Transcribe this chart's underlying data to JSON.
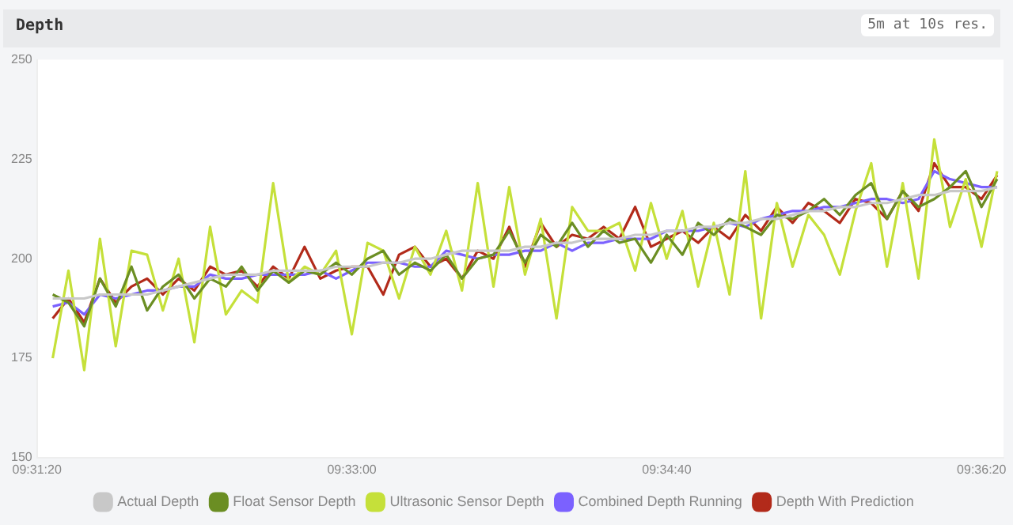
{
  "chart_data": {
    "type": "line",
    "title": "Depth",
    "subtitle": "5m at 10s res.",
    "x": [
      9.52361,
      9.525,
      9.52639,
      9.52778,
      9.52917,
      9.53056,
      9.53194,
      9.53333,
      9.53472,
      9.53611,
      9.5375,
      9.53889,
      9.54028,
      9.54167,
      9.54306,
      9.54444,
      9.54583,
      9.54722,
      9.54861,
      9.55,
      9.55139,
      9.55278,
      9.55417,
      9.55556,
      9.55694,
      9.55833,
      9.55972,
      9.56111,
      9.5625,
      9.56389,
      9.56528,
      9.56667,
      9.56806,
      9.56944,
      9.57083,
      9.57222,
      9.57361,
      9.575,
      9.57639,
      9.57778,
      9.57917,
      9.58056,
      9.58194,
      9.58333,
      9.58472,
      9.58611,
      9.5875,
      9.58889,
      9.59028,
      9.59167,
      9.59306,
      9.59444,
      9.59583,
      9.59722,
      9.59861,
      9.6,
      9.60139,
      9.60278,
      9.60417,
      9.60556,
      9.60694
    ],
    "series": [
      {
        "name": "Actual Depth",
        "color": "#c8c8c8",
        "values": [
          190,
          190,
          190,
          191,
          191,
          191,
          191,
          192,
          193,
          194,
          195,
          196,
          196,
          196,
          197,
          197,
          197,
          197,
          198,
          198,
          198,
          199,
          199,
          200,
          200,
          201,
          202,
          202,
          202,
          202,
          203,
          203,
          204,
          204,
          205,
          205,
          205,
          206,
          206,
          207,
          207,
          208,
          208,
          209,
          209,
          210,
          210,
          211,
          212,
          212,
          213,
          213,
          214,
          214,
          215,
          216,
          216,
          217,
          217,
          217,
          218
        ]
      },
      {
        "name": "Float Sensor Depth",
        "color": "#6b8e23",
        "values": [
          191,
          189,
          183,
          195,
          188,
          198,
          187,
          193,
          196,
          190,
          195,
          193,
          198,
          192,
          197,
          194,
          197,
          196,
          199,
          196,
          200,
          202,
          196,
          199,
          197,
          201,
          195,
          200,
          201,
          207,
          199,
          206,
          203,
          209,
          203,
          207,
          204,
          205,
          199,
          206,
          201,
          209,
          206,
          210,
          208,
          206,
          211,
          210,
          212,
          215,
          211,
          216,
          219,
          210,
          217,
          213,
          215,
          218,
          222,
          213,
          220
        ]
      },
      {
        "name": "Ultrasonic Sensor Depth",
        "color": "#c5e03a",
        "values": [
          175,
          197,
          172,
          205,
          178,
          202,
          201,
          187,
          200,
          179,
          208,
          186,
          192,
          189,
          219,
          194,
          198,
          196,
          202,
          181,
          204,
          202,
          190,
          203,
          196,
          207,
          192,
          219,
          193,
          218,
          196,
          210,
          185,
          213,
          207,
          207,
          209,
          197,
          214,
          200,
          212,
          193,
          209,
          191,
          222,
          185,
          214,
          198,
          211,
          206,
          196,
          212,
          224,
          198,
          219,
          195,
          230,
          208,
          220,
          203,
          222
        ]
      },
      {
        "name": "Combined Depth Running",
        "color": "#7b61ff",
        "values": [
          188,
          189,
          186,
          191,
          190,
          191,
          192,
          192,
          193,
          193,
          196,
          195,
          195,
          196,
          196,
          196,
          196,
          197,
          195,
          197,
          199,
          199,
          199,
          198,
          198,
          202,
          201,
          200,
          201,
          201,
          202,
          202,
          204,
          202,
          204,
          204,
          205,
          205,
          205,
          207,
          207,
          207,
          208,
          209,
          208,
          210,
          211,
          212,
          212,
          213,
          213,
          214,
          215,
          215,
          214,
          215,
          222,
          220,
          219,
          218,
          218
        ]
      },
      {
        "name": "Depth With Prediction",
        "color": "#b22a1a",
        "values": [
          185,
          190,
          184,
          195,
          189,
          193,
          195,
          191,
          195,
          192,
          198,
          196,
          197,
          193,
          198,
          195,
          203,
          195,
          197,
          198,
          198,
          191,
          201,
          203,
          198,
          200,
          195,
          202,
          200,
          208,
          198,
          209,
          203,
          206,
          205,
          208,
          205,
          213,
          203,
          205,
          207,
          204,
          208,
          205,
          211,
          207,
          213,
          209,
          214,
          212,
          209,
          215,
          214,
          210,
          217,
          212,
          224,
          218,
          218,
          215,
          221
        ]
      }
    ],
    "xlim": [
      9.52222,
      9.6075
    ],
    "xticks": [
      {
        "value": 9.52222,
        "label": "09:31:20"
      },
      {
        "value": 9.55,
        "label": "09:33:00"
      },
      {
        "value": 9.57778,
        "label": "09:34:40"
      },
      {
        "value": 9.60556,
        "label": "09:36:20"
      }
    ],
    "ylim": [
      150,
      250
    ],
    "yticks": [
      150,
      175,
      200,
      225,
      250
    ],
    "grid": false,
    "legend": "bottom",
    "marker": "none",
    "line_style": "solid"
  }
}
